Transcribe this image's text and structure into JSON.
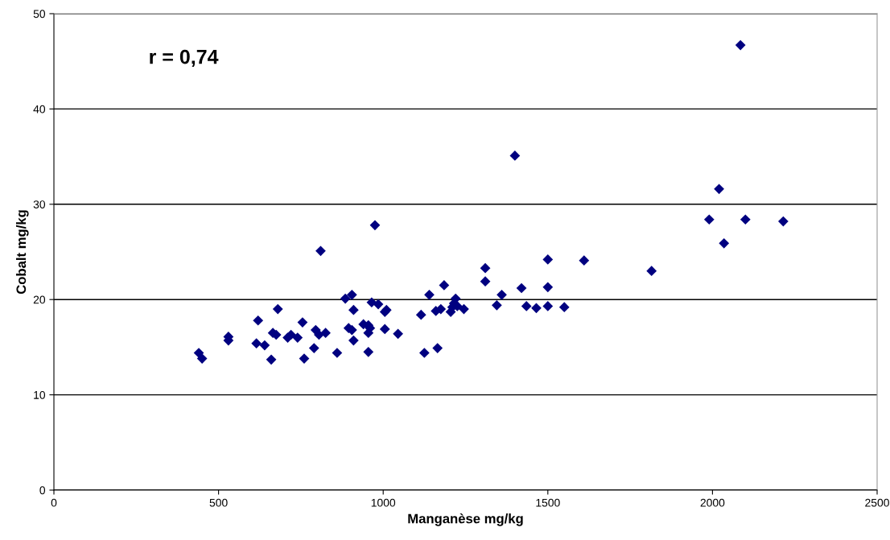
{
  "chart_data": {
    "type": "scatter",
    "xlabel": "Manganèse mg/kg",
    "ylabel": "Cobalt mg/kg",
    "annotations": [
      "r = 0,74"
    ],
    "x": [
      440,
      450,
      530,
      530,
      615,
      620,
      640,
      660,
      665,
      675,
      680,
      710,
      720,
      740,
      755,
      760,
      790,
      795,
      805,
      810,
      825,
      860,
      885,
      895,
      905,
      905,
      910,
      910,
      940,
      955,
      955,
      955,
      960,
      965,
      975,
      985,
      1005,
      1005,
      1010,
      1045,
      1115,
      1125,
      1140,
      1160,
      1165,
      1175,
      1185,
      1205,
      1210,
      1215,
      1220,
      1225,
      1245,
      1310,
      1310,
      1345,
      1360,
      1400,
      1420,
      1435,
      1465,
      1500,
      1500,
      1500,
      1550,
      1610,
      1815,
      1990,
      2020,
      2035,
      2085,
      2100,
      2215
    ],
    "series": [
      {
        "color": "#000080",
        "values": [
          14.4,
          13.8,
          16.1,
          15.7,
          15.4,
          17.8,
          15.2,
          13.7,
          16.5,
          16.3,
          19.0,
          16.0,
          16.3,
          16.0,
          17.6,
          13.8,
          14.9,
          16.8,
          16.3,
          25.1,
          16.5,
          14.4,
          20.1,
          17.0,
          20.5,
          16.8,
          15.7,
          18.9,
          17.4,
          16.5,
          17.3,
          14.5,
          17.0,
          19.7,
          27.8,
          19.5,
          16.9,
          18.7,
          18.9,
          16.4,
          18.4,
          14.4,
          20.5,
          18.8,
          14.9,
          19.0,
          21.5,
          18.7,
          19.2,
          19.6,
          20.1,
          19.3,
          19.0,
          23.3,
          21.9,
          19.4,
          20.5,
          35.1,
          21.2,
          19.3,
          19.1,
          24.2,
          21.3,
          19.3,
          19.2,
          24.1,
          23.0,
          28.4,
          31.6,
          25.9,
          46.7,
          28.4,
          28.2
        ]
      }
    ],
    "xlim": [
      0,
      2500
    ],
    "xticks": [
      0,
      500,
      1000,
      1500,
      2000,
      2500
    ],
    "ylim": [
      0,
      50
    ],
    "yticks": [
      0,
      10,
      20,
      30,
      40,
      50
    ],
    "grid": "y",
    "marker": "diamond",
    "legend": false
  }
}
